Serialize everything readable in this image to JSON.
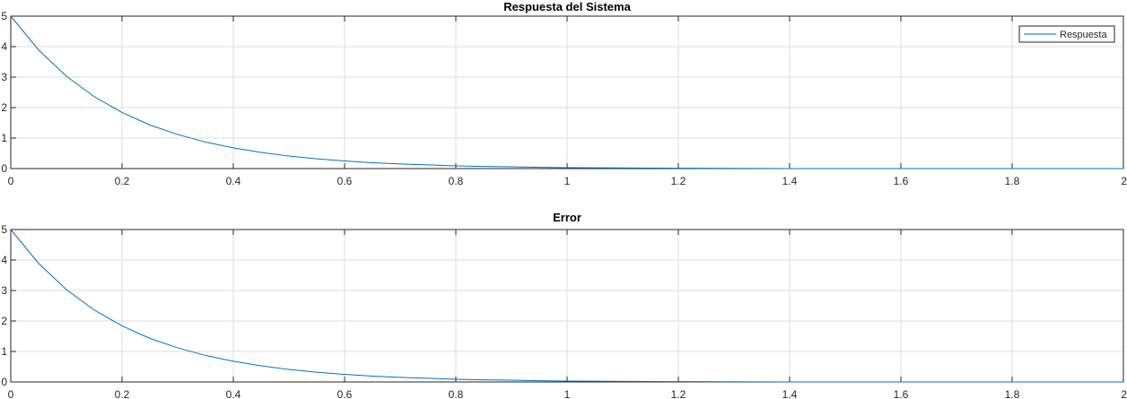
{
  "chart_data": [
    {
      "type": "line",
      "title": "Respuesta del Sistema",
      "xlabel": "",
      "ylabel": "",
      "xlim": [
        0,
        2
      ],
      "ylim": [
        0,
        5
      ],
      "xticks": [
        0,
        0.2,
        0.4,
        0.6,
        0.8,
        1,
        1.2,
        1.4,
        1.6,
        1.8,
        2
      ],
      "xtick_labels": [
        "0",
        "0.2",
        "0.4",
        "0.6",
        "0.8",
        "1",
        "1.2",
        "1.4",
        "1.6",
        "1.8",
        "2"
      ],
      "yticks": [
        0,
        1,
        2,
        3,
        4,
        5
      ],
      "ytick_labels": [
        "0",
        "1",
        "2",
        "3",
        "4",
        "5"
      ],
      "grid": true,
      "legend": "top-right",
      "series": [
        {
          "name": "Respuesta",
          "color": "#0072bd",
          "x": [
            0,
            0.05,
            0.1,
            0.15,
            0.2,
            0.25,
            0.3,
            0.35,
            0.4,
            0.45,
            0.5,
            0.55,
            0.6,
            0.65,
            0.7,
            0.75,
            0.8,
            0.85,
            0.9,
            0.95,
            1.0,
            1.2,
            1.4,
            1.6,
            1.8,
            2.0
          ],
          "y": [
            5.0,
            3.89,
            3.03,
            2.36,
            1.84,
            1.43,
            1.12,
            0.87,
            0.68,
            0.53,
            0.41,
            0.32,
            0.25,
            0.19,
            0.15,
            0.12,
            0.09,
            0.07,
            0.06,
            0.04,
            0.03,
            0.01,
            0.0,
            0.0,
            0.0,
            0.0
          ]
        }
      ]
    },
    {
      "type": "line",
      "title": "Error",
      "xlabel": "",
      "ylabel": "",
      "xlim": [
        0,
        2
      ],
      "ylim": [
        0,
        5
      ],
      "xticks": [
        0,
        0.2,
        0.4,
        0.6,
        0.8,
        1,
        1.2,
        1.4,
        1.6,
        1.8,
        2
      ],
      "xtick_labels": [
        "0",
        "0.2",
        "0.4",
        "0.6",
        "0.8",
        "1",
        "1.2",
        "1.4",
        "1.6",
        "1.8",
        "2"
      ],
      "yticks": [
        0,
        1,
        2,
        3,
        4,
        5
      ],
      "ytick_labels": [
        "0",
        "1",
        "2",
        "3",
        "4",
        "5"
      ],
      "grid": true,
      "series": [
        {
          "color": "#0072bd",
          "x": [
            0,
            0.05,
            0.1,
            0.15,
            0.2,
            0.25,
            0.3,
            0.35,
            0.4,
            0.45,
            0.5,
            0.55,
            0.6,
            0.65,
            0.7,
            0.75,
            0.8,
            0.85,
            0.9,
            0.95,
            1.0,
            1.2,
            1.4,
            1.6,
            1.8,
            2.0
          ],
          "y": [
            5.0,
            3.89,
            3.03,
            2.36,
            1.84,
            1.43,
            1.12,
            0.87,
            0.68,
            0.53,
            0.41,
            0.32,
            0.25,
            0.19,
            0.15,
            0.12,
            0.09,
            0.07,
            0.06,
            0.04,
            0.03,
            0.01,
            0.0,
            0.0,
            0.0,
            0.0
          ]
        }
      ]
    }
  ]
}
